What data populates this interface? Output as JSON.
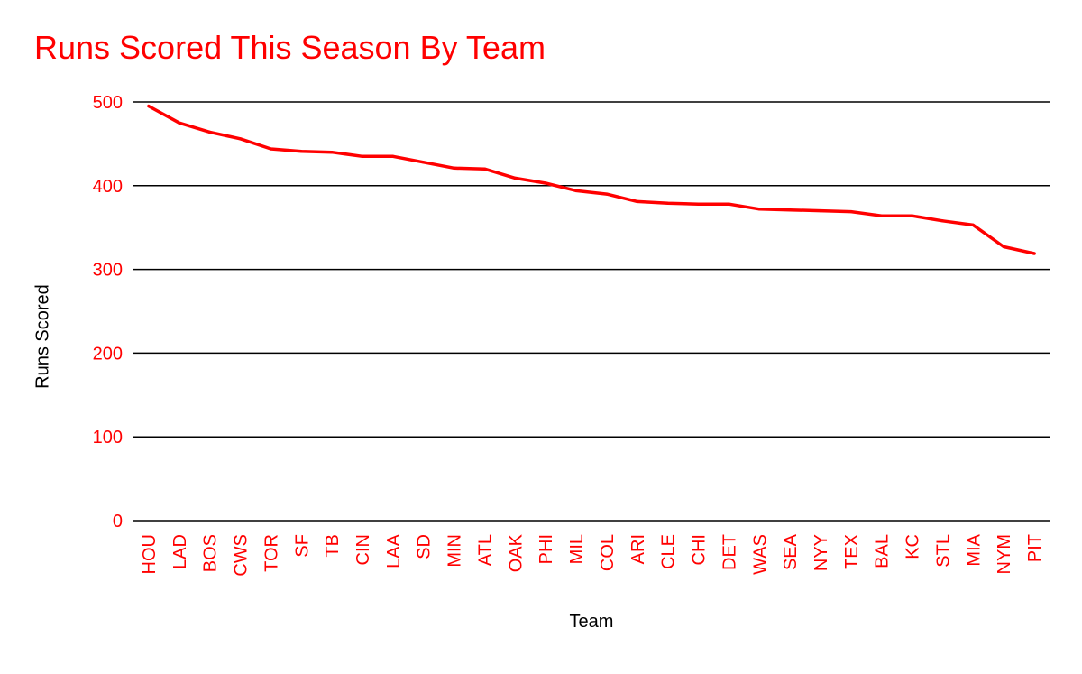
{
  "colors": {
    "accent": "#ff0000",
    "grid": "#000000",
    "text": "#000000"
  },
  "chart_data": {
    "type": "line",
    "title": "Runs Scored This Season By Team",
    "xlabel": "Team",
    "ylabel": "Runs Scored",
    "ylim": [
      0,
      500
    ],
    "yticks": [
      "0",
      "100",
      "200",
      "300",
      "400",
      "500"
    ],
    "grid": true,
    "categories": [
      "HOU",
      "LAD",
      "BOS",
      "CWS",
      "TOR",
      "SF",
      "TB",
      "CIN",
      "LAA",
      "SD",
      "MIN",
      "ATL",
      "OAK",
      "PHI",
      "MIL",
      "COL",
      "ARI",
      "CLE",
      "CHI",
      "DET",
      "WAS",
      "SEA",
      "NYY",
      "TEX",
      "BAL",
      "KC",
      "STL",
      "MIA",
      "NYM",
      "PIT"
    ],
    "series": [
      {
        "values": [
          495,
          475,
          464,
          456,
          444,
          441,
          440,
          435,
          435,
          428,
          421,
          420,
          409,
          403,
          394,
          390,
          381,
          379,
          378,
          378,
          372,
          371,
          370,
          369,
          364,
          364,
          358,
          353,
          327,
          319
        ]
      }
    ]
  }
}
